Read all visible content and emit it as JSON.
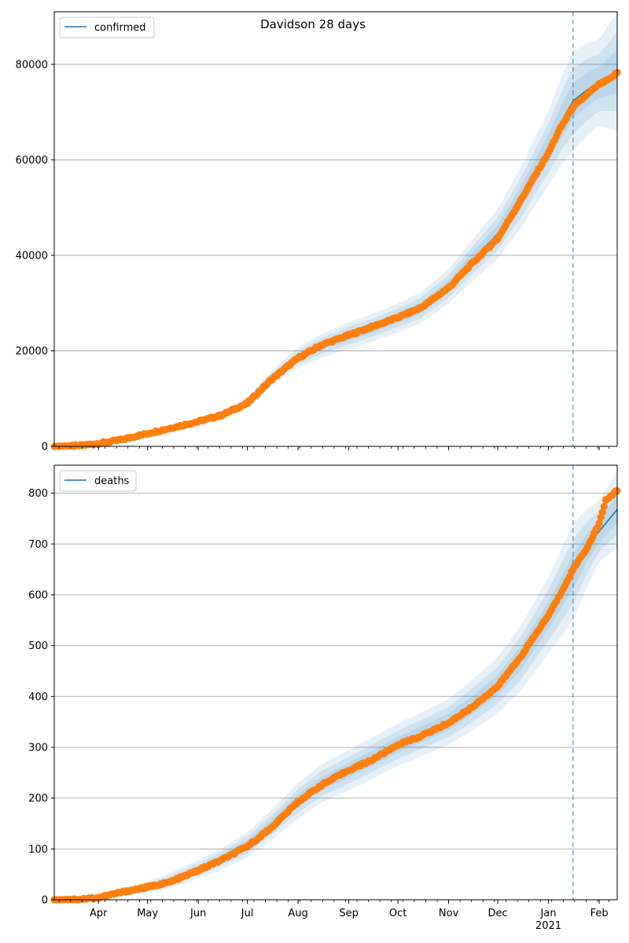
{
  "title": "Davidson 28 days",
  "colors": {
    "model_line": "#1f77b4",
    "observed_points": "#ff7f0e",
    "band": "#1f77b4",
    "grid": "#b0b0b0",
    "forecast_line": "#1f77b4"
  },
  "x_axis": {
    "month_ticks": [
      {
        "date": "2020-04-01",
        "label": "Apr"
      },
      {
        "date": "2020-05-01",
        "label": "May"
      },
      {
        "date": "2020-06-01",
        "label": "Jun"
      },
      {
        "date": "2020-07-01",
        "label": "Jul"
      },
      {
        "date": "2020-08-01",
        "label": "Aug"
      },
      {
        "date": "2020-09-01",
        "label": "Sep"
      },
      {
        "date": "2020-10-01",
        "label": "Oct"
      },
      {
        "date": "2020-11-01",
        "label": "Nov"
      },
      {
        "date": "2020-12-01",
        "label": "Dec"
      },
      {
        "date": "2021-01-01",
        "label": "Jan"
      },
      {
        "date": "2021-02-01",
        "label": "Feb"
      }
    ],
    "year_label": "2021",
    "xlim": [
      "2020-03-05",
      "2021-02-12"
    ],
    "forecast_start": "2021-01-16"
  },
  "chart_data": [
    {
      "type": "line",
      "legend": "confirmed",
      "legend_position": "upper left",
      "grid": "y",
      "ylim": [
        0,
        91000
      ],
      "yticks": [
        0,
        20000,
        40000,
        60000,
        80000
      ],
      "ytick_labels": [
        "0",
        "20000",
        "40000",
        "60000",
        "80000"
      ],
      "model": [
        [
          "2020-03-05",
          0
        ],
        [
          "2020-03-20",
          200
        ],
        [
          "2020-04-01",
          600
        ],
        [
          "2020-04-15",
          1500
        ],
        [
          "2020-05-01",
          2800
        ],
        [
          "2020-05-15",
          3900
        ],
        [
          "2020-06-01",
          5200
        ],
        [
          "2020-06-15",
          6700
        ],
        [
          "2020-07-01",
          9300
        ],
        [
          "2020-07-15",
          14000
        ],
        [
          "2020-08-01",
          18600
        ],
        [
          "2020-08-15",
          21000
        ],
        [
          "2020-09-01",
          23200
        ],
        [
          "2020-09-15",
          24800
        ],
        [
          "2020-10-01",
          26900
        ],
        [
          "2020-10-15",
          29000
        ],
        [
          "2020-11-01",
          33500
        ],
        [
          "2020-11-15",
          38800
        ],
        [
          "2020-12-01",
          44500
        ],
        [
          "2020-12-15",
          52000
        ],
        [
          "2021-01-01",
          62500
        ],
        [
          "2021-01-08",
          67500
        ],
        [
          "2021-01-16",
          72300
        ],
        [
          "2021-01-25",
          74800
        ],
        [
          "2021-02-01",
          76200
        ],
        [
          "2021-02-12",
          78500
        ]
      ],
      "band_half_widths": [
        [
          "2020-03-05",
          0
        ],
        [
          "2020-05-01",
          300
        ],
        [
          "2020-06-01",
          600
        ],
        [
          "2020-07-01",
          1000
        ],
        [
          "2020-08-01",
          2200
        ],
        [
          "2020-09-01",
          2800
        ],
        [
          "2020-10-01",
          3000
        ],
        [
          "2020-11-01",
          3600
        ],
        [
          "2020-12-01",
          5200
        ],
        [
          "2021-01-01",
          7800
        ],
        [
          "2021-01-16",
          10500
        ],
        [
          "2021-02-01",
          9000
        ],
        [
          "2021-02-12",
          12500
        ]
      ],
      "observed_anchors": [
        [
          "2020-03-05",
          0
        ],
        [
          "2020-03-20",
          150
        ],
        [
          "2020-04-01",
          600
        ],
        [
          "2020-04-15",
          1400
        ],
        [
          "2020-05-01",
          2700
        ],
        [
          "2020-05-15",
          3800
        ],
        [
          "2020-06-01",
          5200
        ],
        [
          "2020-06-15",
          6500
        ],
        [
          "2020-07-01",
          9000
        ],
        [
          "2020-07-15",
          13800
        ],
        [
          "2020-08-01",
          18500
        ],
        [
          "2020-08-15",
          21200
        ],
        [
          "2020-09-01",
          23300
        ],
        [
          "2020-09-15",
          25000
        ],
        [
          "2020-10-01",
          27000
        ],
        [
          "2020-10-15",
          29000
        ],
        [
          "2020-11-01",
          33200
        ],
        [
          "2020-11-15",
          38200
        ],
        [
          "2020-12-01",
          43500
        ],
        [
          "2020-12-15",
          51500
        ],
        [
          "2021-01-01",
          61500
        ],
        [
          "2021-01-08",
          66500
        ],
        [
          "2021-01-16",
          71000
        ],
        [
          "2021-01-25",
          73800
        ],
        [
          "2021-02-01",
          75800
        ],
        [
          "2021-02-08",
          77000
        ],
        [
          "2021-02-12",
          78300
        ]
      ]
    },
    {
      "type": "line",
      "legend": "deaths",
      "legend_position": "upper left",
      "grid": "y",
      "ylim": [
        0,
        855
      ],
      "yticks": [
        0,
        100,
        200,
        300,
        400,
        500,
        600,
        700,
        800
      ],
      "ytick_labels": [
        "0",
        "100",
        "200",
        "300",
        "400",
        "500",
        "600",
        "700",
        "800"
      ],
      "model": [
        [
          "2020-03-05",
          0
        ],
        [
          "2020-03-20",
          2
        ],
        [
          "2020-04-01",
          5
        ],
        [
          "2020-04-15",
          15
        ],
        [
          "2020-05-01",
          25
        ],
        [
          "2020-05-15",
          38
        ],
        [
          "2020-06-01",
          60
        ],
        [
          "2020-06-15",
          80
        ],
        [
          "2020-07-01",
          108
        ],
        [
          "2020-07-15",
          145
        ],
        [
          "2020-08-01",
          195
        ],
        [
          "2020-08-15",
          228
        ],
        [
          "2020-09-01",
          255
        ],
        [
          "2020-09-15",
          278
        ],
        [
          "2020-10-01",
          305
        ],
        [
          "2020-10-15",
          325
        ],
        [
          "2020-11-01",
          350
        ],
        [
          "2020-11-15",
          382
        ],
        [
          "2020-12-01",
          422
        ],
        [
          "2020-12-15",
          475
        ],
        [
          "2021-01-01",
          560
        ],
        [
          "2021-01-08",
          600
        ],
        [
          "2021-01-16",
          645
        ],
        [
          "2021-01-25",
          695
        ],
        [
          "2021-02-01",
          725
        ],
        [
          "2021-02-12",
          768
        ]
      ],
      "band_half_widths": [
        [
          "2020-03-05",
          0
        ],
        [
          "2020-04-01",
          4
        ],
        [
          "2020-05-01",
          12
        ],
        [
          "2020-06-01",
          18
        ],
        [
          "2020-07-01",
          25
        ],
        [
          "2020-08-01",
          35
        ],
        [
          "2020-09-01",
          40
        ],
        [
          "2020-10-01",
          42
        ],
        [
          "2020-11-01",
          45
        ],
        [
          "2020-12-01",
          55
        ],
        [
          "2021-01-01",
          75
        ],
        [
          "2021-01-16",
          95
        ],
        [
          "2021-02-01",
          60
        ],
        [
          "2021-02-12",
          75
        ]
      ],
      "observed_anchors": [
        [
          "2020-03-05",
          0
        ],
        [
          "2020-03-20",
          1
        ],
        [
          "2020-04-01",
          4
        ],
        [
          "2020-04-15",
          15
        ],
        [
          "2020-05-01",
          25
        ],
        [
          "2020-05-15",
          35
        ],
        [
          "2020-06-01",
          58
        ],
        [
          "2020-06-15",
          78
        ],
        [
          "2020-07-01",
          105
        ],
        [
          "2020-07-15",
          140
        ],
        [
          "2020-08-01",
          193
        ],
        [
          "2020-08-15",
          225
        ],
        [
          "2020-09-01",
          255
        ],
        [
          "2020-09-15",
          275
        ],
        [
          "2020-10-01",
          305
        ],
        [
          "2020-10-15",
          322
        ],
        [
          "2020-11-01",
          348
        ],
        [
          "2020-11-15",
          378
        ],
        [
          "2020-12-01",
          420
        ],
        [
          "2020-12-15",
          478
        ],
        [
          "2021-01-01",
          560
        ],
        [
          "2021-01-08",
          600
        ],
        [
          "2021-01-16",
          650
        ],
        [
          "2021-01-25",
          695
        ],
        [
          "2021-02-01",
          740
        ],
        [
          "2021-02-05",
          785
        ],
        [
          "2021-02-12",
          806
        ]
      ]
    }
  ]
}
